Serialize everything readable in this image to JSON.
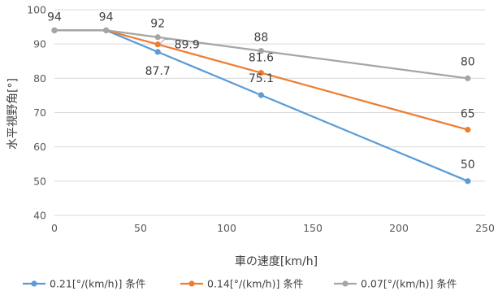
{
  "chart_data": {
    "type": "line",
    "xlabel": "車の速度[km/h]",
    "ylabel": "水平視野角[°]",
    "xlim": [
      0,
      250
    ],
    "ylim": [
      40,
      100
    ],
    "xticks": [
      0,
      50,
      100,
      150,
      200,
      250
    ],
    "yticks": [
      40,
      50,
      60,
      70,
      80,
      90,
      100
    ],
    "grid": "horizontal",
    "legend": "bottom",
    "series": [
      {
        "name": "0.21[°/(km/h)] 条件",
        "color": "#5B9BD5",
        "x": [
          0,
          30,
          60,
          120,
          240
        ],
        "y": [
          94,
          94,
          87.7,
          75.1,
          50
        ]
      },
      {
        "name": "0.14[°/(km/h)] 条件",
        "color": "#ED7D31",
        "x": [
          0,
          30,
          60,
          120,
          240
        ],
        "y": [
          94,
          94,
          89.9,
          81.6,
          65
        ]
      },
      {
        "name": "0.07[°/(km/h)] 条件",
        "color": "#A5A5A5",
        "x": [
          0,
          30,
          60,
          120,
          240
        ],
        "y": [
          94,
          94,
          92,
          88,
          80
        ]
      }
    ],
    "annotations": [
      {
        "text": "94",
        "x": 0,
        "y": 94
      },
      {
        "text": "94",
        "x": 30,
        "y": 94
      },
      {
        "text": "92",
        "x": 60,
        "y": 92
      },
      {
        "text": "89.9",
        "x": 60,
        "y": 89.9
      },
      {
        "text": "87.7",
        "x": 60,
        "y": 87.7
      },
      {
        "text": "88",
        "x": 120,
        "y": 88
      },
      {
        "text": "81.6",
        "x": 120,
        "y": 81.6
      },
      {
        "text": "75.1",
        "x": 120,
        "y": 75.1
      },
      {
        "text": "80",
        "x": 240,
        "y": 80
      },
      {
        "text": "65",
        "x": 240,
        "y": 65
      },
      {
        "text": "50",
        "x": 240,
        "y": 50
      }
    ]
  }
}
